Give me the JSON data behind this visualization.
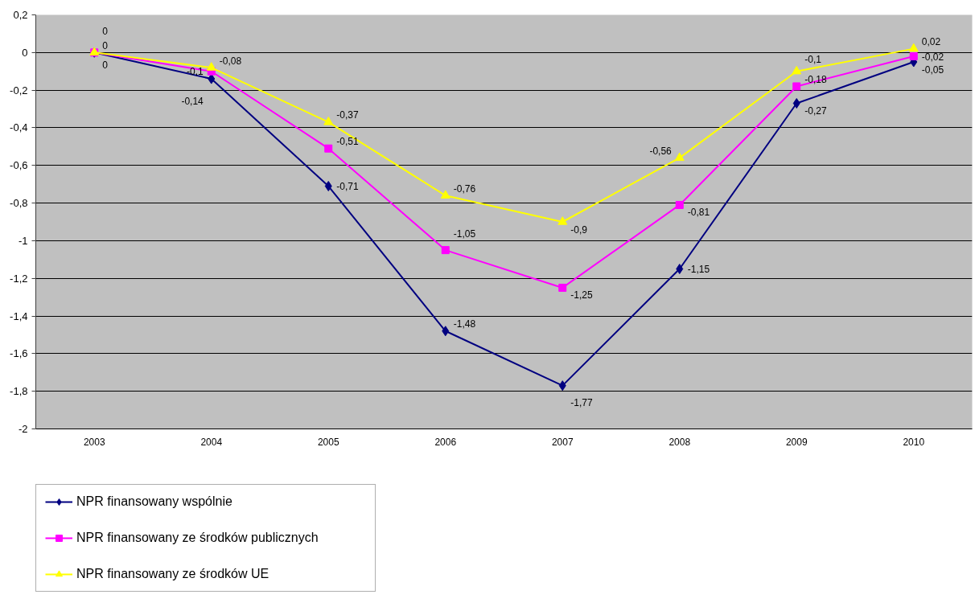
{
  "chart_data": {
    "type": "line",
    "categories": [
      "2003",
      "2004",
      "2005",
      "2006",
      "2007",
      "2008",
      "2009",
      "2010"
    ],
    "ylim": [
      -2,
      0.2
    ],
    "yticks": [
      {
        "value": 0.2,
        "label": "0,2"
      },
      0,
      {
        "value": -0.2,
        "label": "-0,2"
      },
      {
        "value": -0.4,
        "label": "-0,4"
      },
      {
        "value": -0.6,
        "label": "-0,6"
      },
      {
        "value": -0.8,
        "label": "-0,8"
      },
      -1,
      {
        "value": -1.2,
        "label": "-1,2"
      },
      {
        "value": -1.4,
        "label": "-1,4"
      },
      {
        "value": -1.6,
        "label": "-1,6"
      },
      {
        "value": -1.8,
        "label": "-1,8"
      },
      -2
    ],
    "grid": "y",
    "legend": "bottom left",
    "line_style": "solid",
    "series": [
      {
        "name": "NPR finansowany wspólnie",
        "color": "#000080",
        "marker": "diamond",
        "values": [
          0,
          -0.14,
          -0.71,
          -1.48,
          -1.77,
          -1.15,
          -0.27,
          -0.05
        ],
        "value_labels": [
          "0",
          "-0,14",
          "-0,71",
          "-1,48",
          "-1,77",
          "-1,15",
          "-0,27",
          "-0,05"
        ]
      },
      {
        "name": "NPR finansowany ze środków publicznych",
        "color": "#ff00ff",
        "marker": "square",
        "values": [
          0,
          -0.1,
          -0.51,
          -1.05,
          -1.25,
          -0.81,
          -0.18,
          -0.02
        ],
        "value_labels": [
          "0",
          "-0,1",
          "-0,51",
          "-1,05",
          "-1,25",
          "-0,81",
          "-0,18",
          "-0,02"
        ]
      },
      {
        "name": "NPR finansowany ze środków UE",
        "color": "#ffff00",
        "marker": "triangle",
        "values": [
          0,
          -0.08,
          -0.37,
          -0.76,
          -0.9,
          -0.56,
          -0.1,
          0.02
        ],
        "value_labels": [
          "0",
          "-0,08",
          "-0,37",
          "-0,76",
          "-0,9",
          "-0,56",
          "-0,1",
          "0,02"
        ]
      }
    ]
  }
}
